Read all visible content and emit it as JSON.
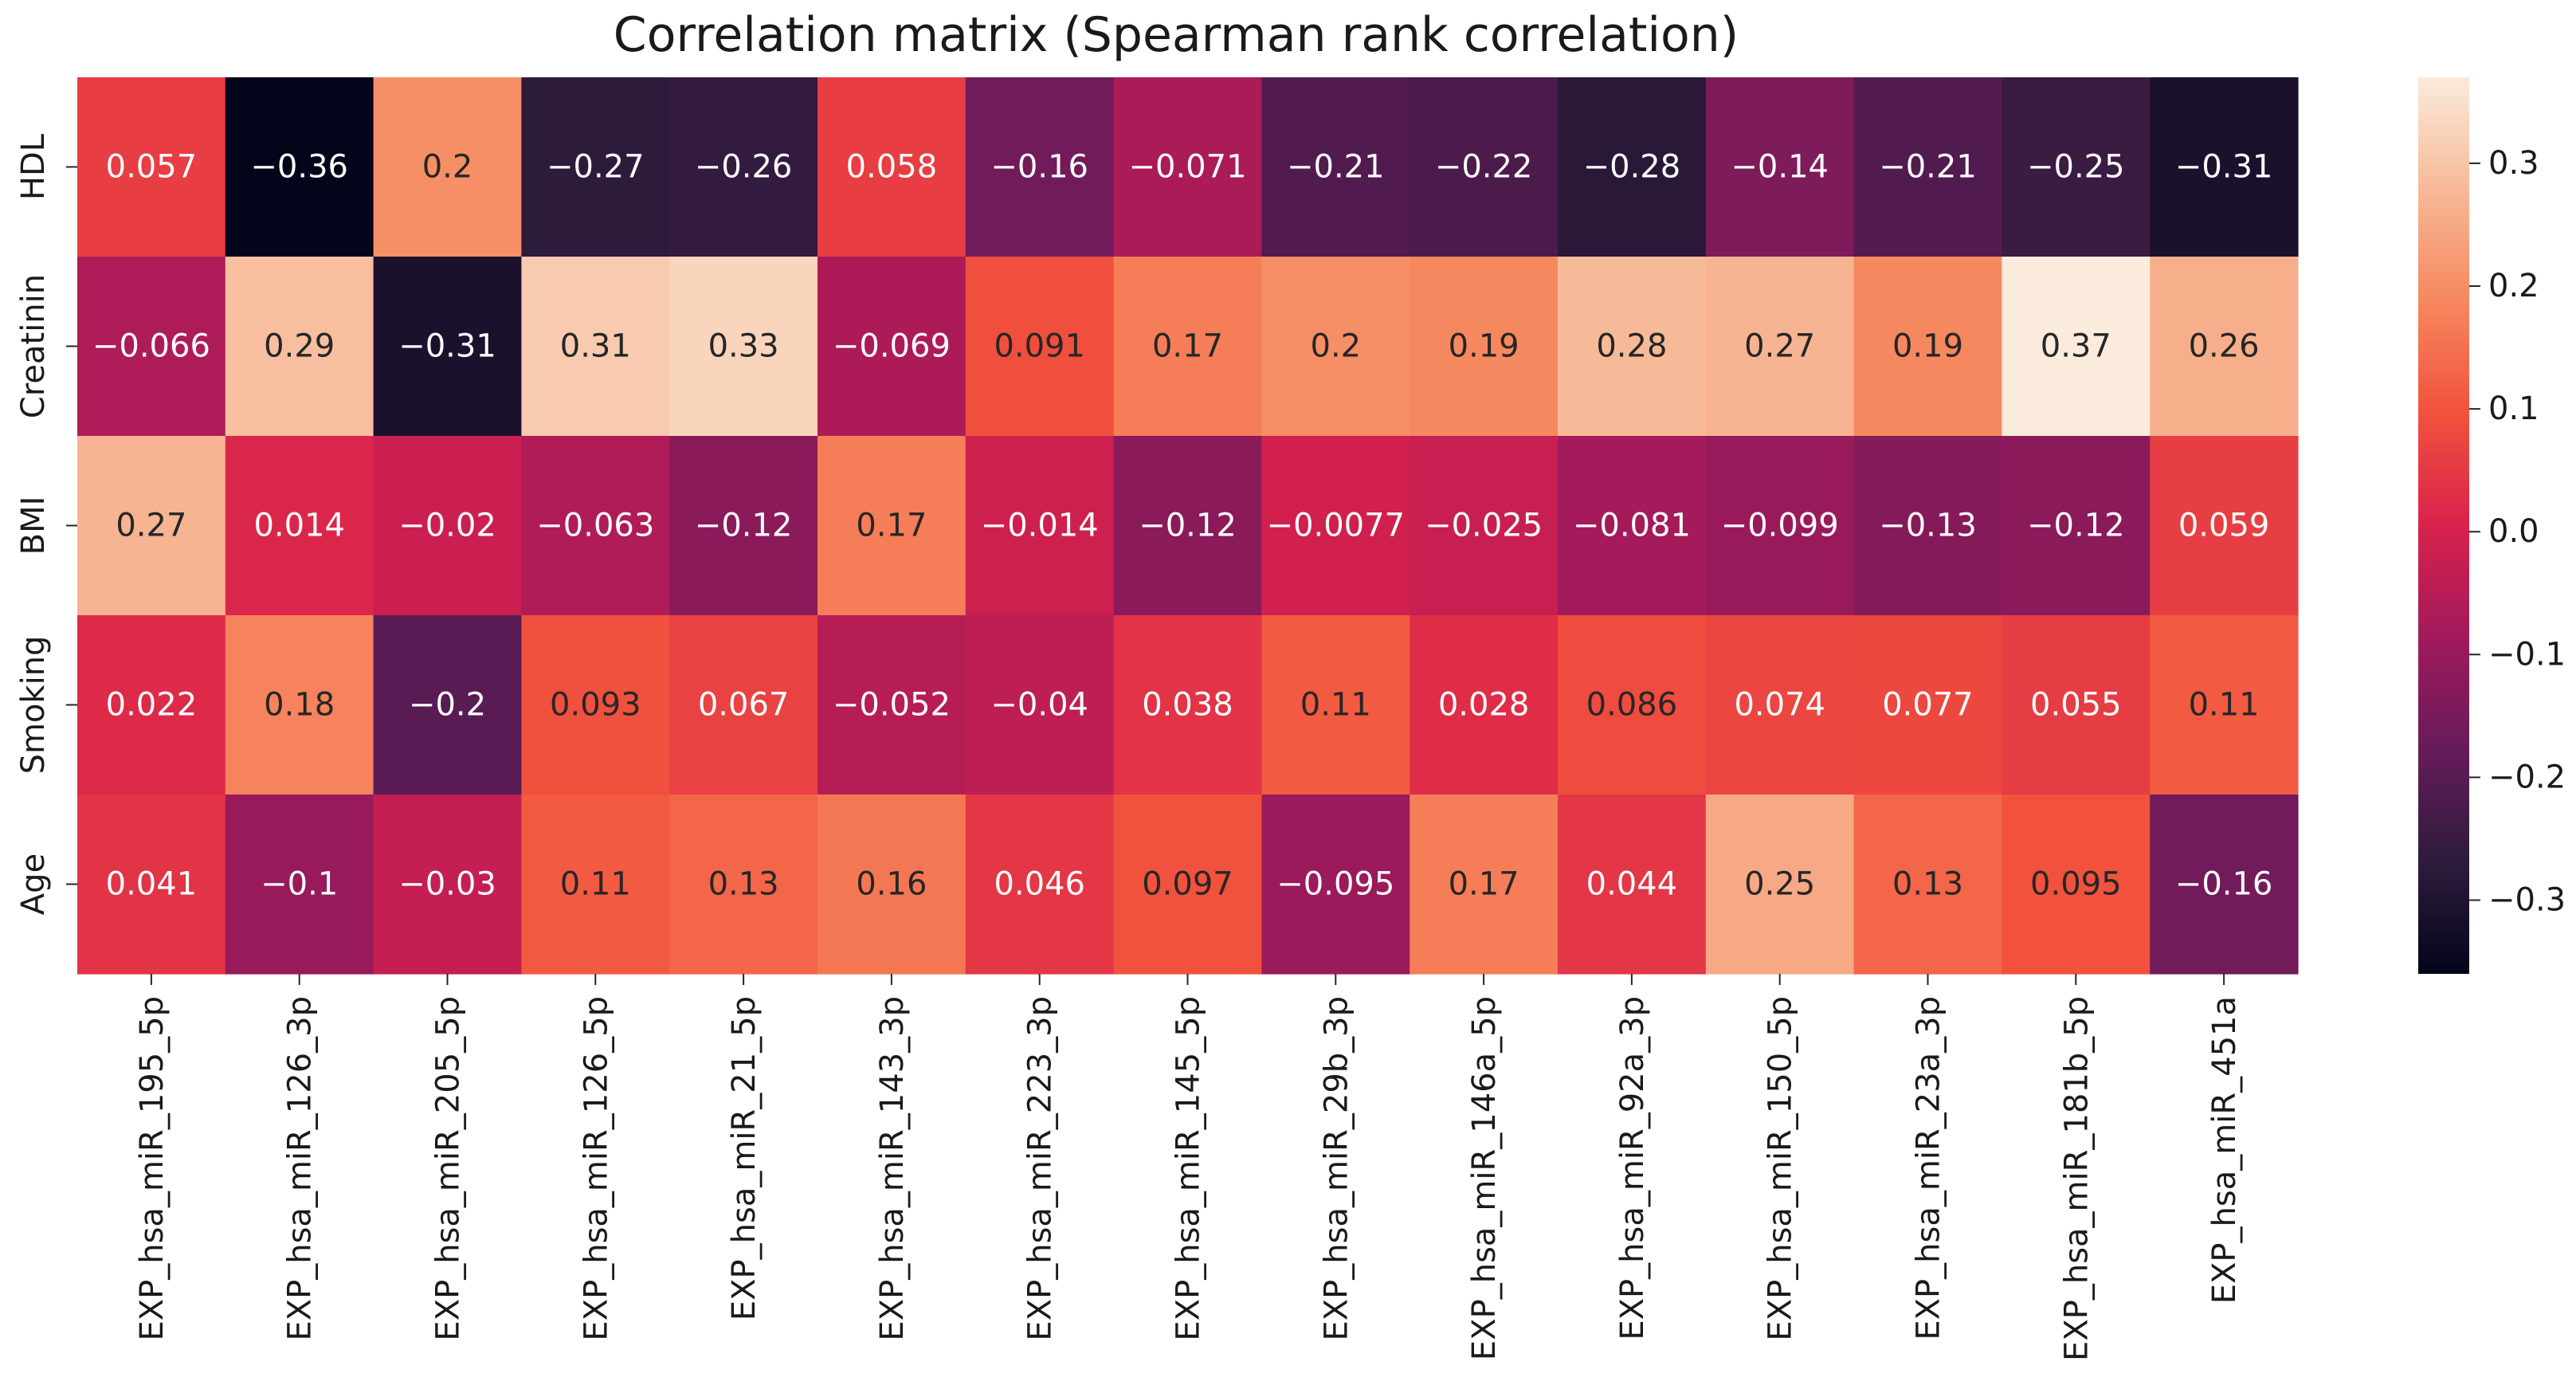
{
  "chart_data": {
    "type": "heatmap",
    "title": "Correlation matrix (Spearman rank correlation)",
    "rows": [
      "HDL",
      "Creatinin",
      "BMI",
      "Smoking",
      "Age"
    ],
    "columns": [
      "EXP_hsa_miR_195_5p",
      "EXP_hsa_miR_126_3p",
      "EXP_hsa_miR_205_5p",
      "EXP_hsa_miR_126_5p",
      "EXP_hsa_miR_21_5p",
      "EXP_hsa_miR_143_3p",
      "EXP_hsa_miR_223_3p",
      "EXP_hsa_miR_145_5p",
      "EXP_hsa_miR_29b_3p",
      "EXP_hsa_miR_146a_5p",
      "EXP_hsa_miR_92a_3p",
      "EXP_hsa_miR_150_5p",
      "EXP_hsa_miR_23a_3p",
      "EXP_hsa_miR_181b_5p",
      "EXP_hsa_miR_451a"
    ],
    "values": [
      [
        0.057,
        -0.36,
        0.2,
        -0.27,
        -0.26,
        0.058,
        -0.16,
        -0.071,
        -0.21,
        -0.22,
        -0.28,
        -0.14,
        -0.21,
        -0.25,
        -0.31
      ],
      [
        -0.066,
        0.29,
        -0.31,
        0.31,
        0.33,
        -0.069,
        0.091,
        0.17,
        0.2,
        0.19,
        0.28,
        0.27,
        0.19,
        0.37,
        0.26
      ],
      [
        0.27,
        0.014,
        -0.02,
        -0.063,
        -0.12,
        0.17,
        -0.014,
        -0.12,
        -0.0077,
        -0.025,
        -0.081,
        -0.099,
        -0.13,
        -0.12,
        0.059
      ],
      [
        0.022,
        0.18,
        -0.2,
        0.093,
        0.067,
        -0.052,
        -0.04,
        0.038,
        0.11,
        0.028,
        0.086,
        0.074,
        0.077,
        0.055,
        0.11
      ],
      [
        0.041,
        -0.1,
        -0.03,
        0.11,
        0.13,
        0.16,
        0.046,
        0.097,
        -0.095,
        0.17,
        0.044,
        0.25,
        0.13,
        0.095,
        -0.16
      ]
    ],
    "vmin": -0.36,
    "vmax": 0.37,
    "colorbar": {
      "ticks": [
        0.3,
        0.2,
        0.1,
        0.0,
        -0.1,
        -0.2,
        -0.3
      ],
      "tick_labels": [
        "0.3",
        "0.2",
        "0.1",
        "0.0",
        "−0.1",
        "−0.2",
        "−0.3"
      ]
    },
    "colormap": "rocket",
    "colormap_stops": [
      [
        0.0,
        "#03051a"
      ],
      [
        0.125,
        "#2e1b3c"
      ],
      [
        0.25,
        "#661b5a"
      ],
      [
        0.375,
        "#a11a5b"
      ],
      [
        0.5,
        "#d9214c"
      ],
      [
        0.625,
        "#f1523d"
      ],
      [
        0.75,
        "#f6875e"
      ],
      [
        0.875,
        "#f7b997"
      ],
      [
        1.0,
        "#faebdd"
      ]
    ],
    "annotation_colors": {
      "light": "#ffffff",
      "dark": "#262626"
    }
  }
}
